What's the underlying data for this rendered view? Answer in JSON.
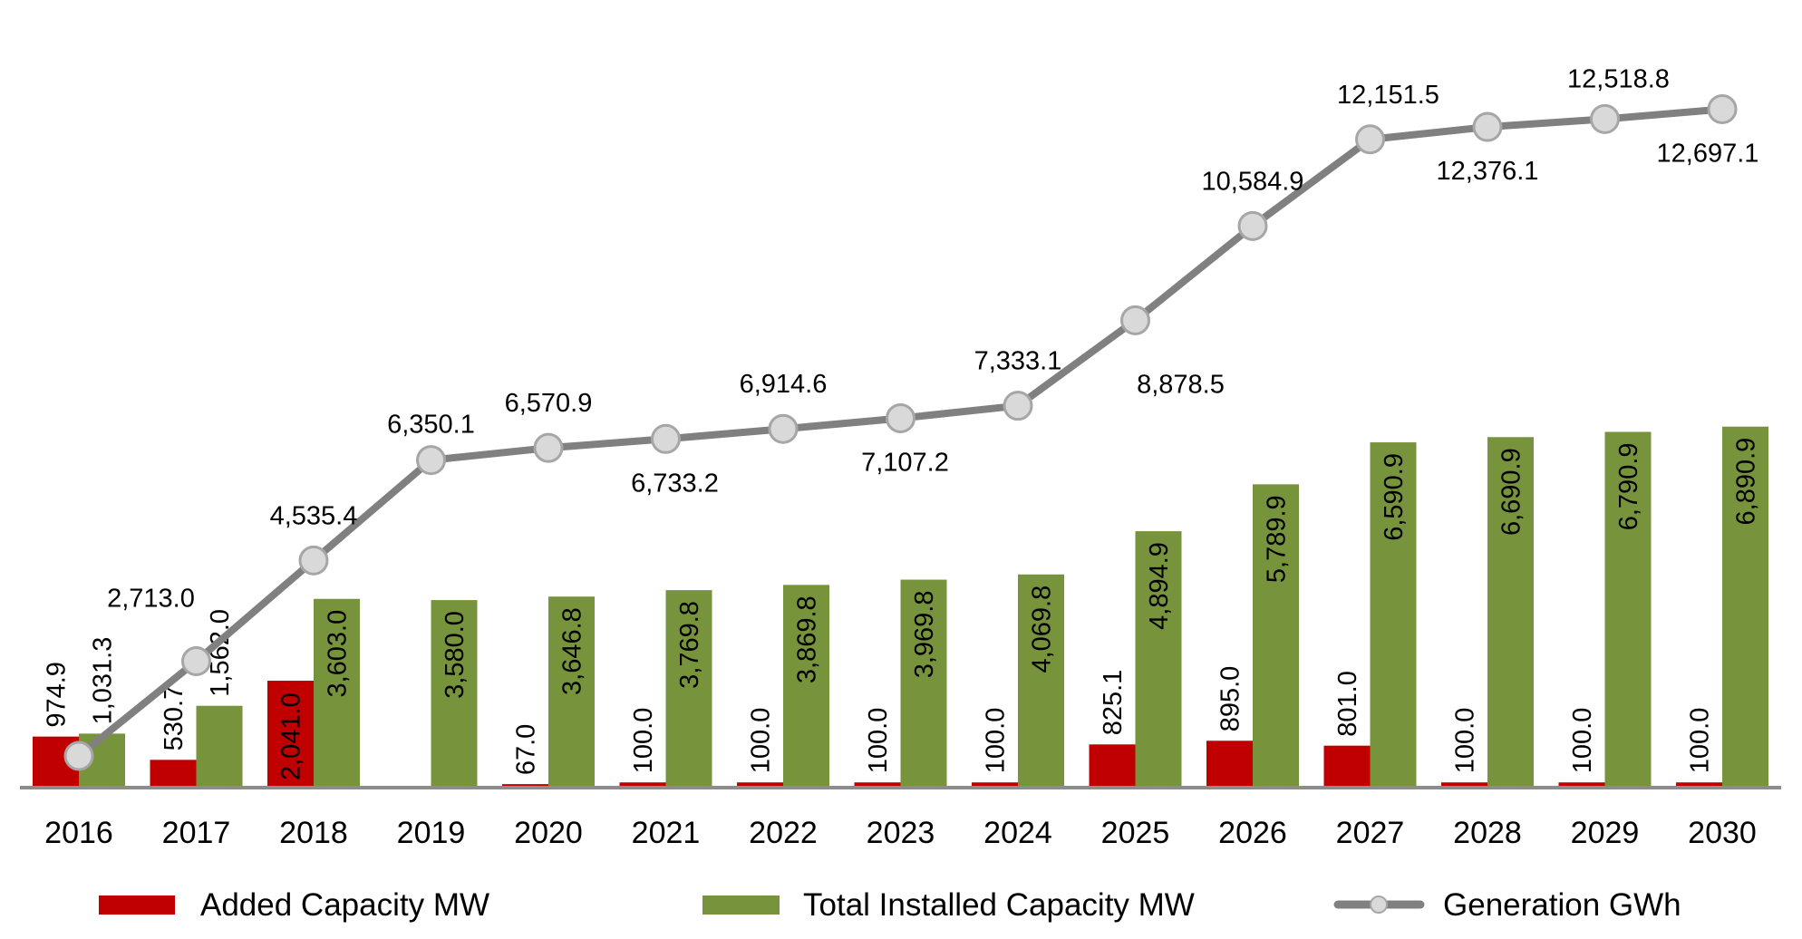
{
  "chart_data": {
    "type": "bar+line",
    "title": "",
    "xlabel": "",
    "ylabel": "",
    "grid": false,
    "legend_position": "bottom",
    "categories": [
      "2016",
      "2017",
      "2018",
      "2019",
      "2020",
      "2021",
      "2022",
      "2023",
      "2024",
      "2025",
      "2026",
      "2027",
      "2028",
      "2029",
      "2030"
    ],
    "series": [
      {
        "name": "Added Capacity MW",
        "type": "bar",
        "color": "#C00000",
        "values": [
          974.9,
          530.7,
          2041.0,
          0,
          67.0,
          100.0,
          100.0,
          100.0,
          100.0,
          825.1,
          895.0,
          801.0,
          100.0,
          100.0,
          100.0
        ],
        "labels": [
          "974.9",
          "530.7",
          "2,041.0",
          "",
          "67.0",
          "100.0",
          "100.0",
          "100.0",
          "100.0",
          "825.1",
          "895.0",
          "801.0",
          "100.0",
          "100.0",
          "100.0"
        ]
      },
      {
        "name": "Total Installed Capacity MW",
        "type": "bar",
        "color": "#77933C",
        "values": [
          1031.3,
          1562.0,
          3603.0,
          3580.0,
          3646.8,
          3769.8,
          3869.8,
          3969.8,
          4069.8,
          4894.9,
          5789.9,
          6590.9,
          6690.9,
          6790.9,
          6890.9
        ],
        "labels": [
          "1,031.3",
          "1,562.0",
          "3,603.0",
          "3,580.0",
          "3,646.8",
          "3,769.8",
          "3,869.8",
          "3,969.8",
          "4,069.8",
          "4,894.9",
          "5,789.9",
          "6,590.9",
          "6,690.9",
          "6,790.9",
          "6,890.9"
        ]
      },
      {
        "name": "Generation GWh",
        "type": "line",
        "color": "#808080",
        "marker_color": "#D9D9D9",
        "values": [
          1000,
          2713.0,
          4535.4,
          6350.1,
          6570.9,
          6733.2,
          6914.6,
          7107.2,
          7333.1,
          8878.5,
          10584.9,
          12151.5,
          12376.1,
          12518.8,
          12697.1
        ],
        "labels": [
          "",
          "2,713.0",
          "4,535.4",
          "6,350.1",
          "6,570.9",
          "6,733.2",
          "6,914.6",
          "7,107.2",
          "7,333.1",
          "8,878.5",
          "10,584.9",
          "12,151.5",
          "12,376.1",
          "12,518.8",
          "12,697.1"
        ]
      }
    ]
  }
}
